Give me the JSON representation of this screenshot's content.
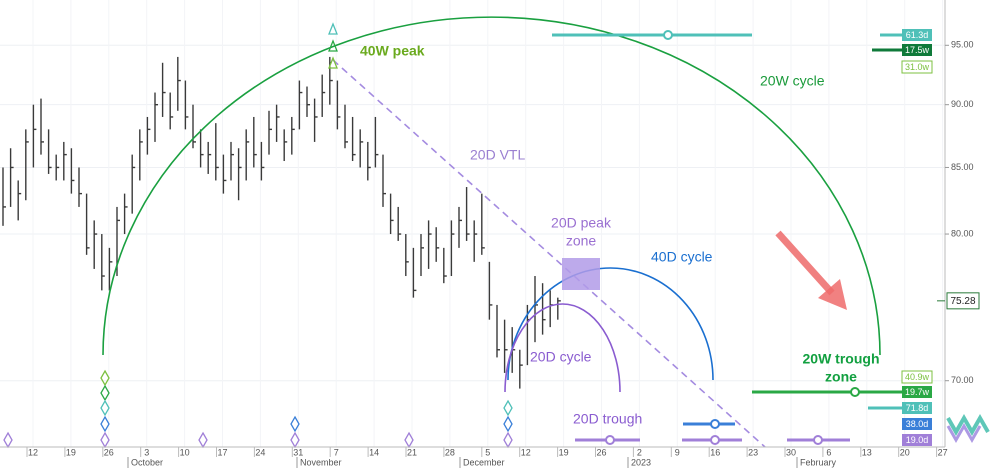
{
  "chart_data": {
    "type": "ohlc",
    "log_scale": true,
    "grid": true,
    "color": "#3a3a3a",
    "ylim": [
      65.9,
      99.0
    ],
    "yticks": [
      {
        "value": 70,
        "label": "70.00"
      },
      {
        "value": 80,
        "label": "80.00"
      },
      {
        "value": 85,
        "label": "85.00"
      },
      {
        "value": 90,
        "label": "90.00"
      },
      {
        "value": 95,
        "label": "95.00"
      }
    ],
    "x_tick_labels": [
      "12",
      "19",
      "26",
      "3",
      "10",
      "17",
      "24",
      "31",
      "7",
      "14",
      "21",
      "28",
      "5",
      "12",
      "19",
      "26",
      "2",
      "9",
      "16",
      "23",
      "30",
      "6",
      "13",
      "20",
      "27"
    ],
    "months": [
      "October",
      "November",
      "December",
      "2023",
      "February"
    ],
    "bars": {
      "high": [
        85,
        86.5,
        84,
        88,
        90,
        90.5,
        88,
        86,
        87,
        86.5,
        85,
        83,
        81,
        80,
        79,
        82,
        83,
        86,
        88,
        89,
        91,
        93.5,
        91,
        94,
        92,
        90,
        88,
        87,
        88.5,
        86,
        87,
        86.5,
        88,
        89,
        87,
        89.5,
        90,
        88,
        89,
        92,
        91.5,
        90.5,
        92.5,
        94,
        92,
        90,
        89,
        88,
        87,
        89,
        86,
        83,
        82,
        80,
        79,
        80,
        81,
        80.5,
        79,
        81,
        82,
        83.5,
        81,
        83,
        78,
        75,
        74,
        73.5,
        72,
        75,
        77,
        76.5,
        76,
        75.5
      ],
      "low": [
        80.6,
        82,
        81,
        82.5,
        85,
        86,
        84.5,
        84,
        84,
        83,
        82,
        78.5,
        77.5,
        76,
        76,
        77,
        80,
        81.5,
        84,
        86,
        87,
        89,
        88,
        89.5,
        88,
        86.5,
        85,
        84.5,
        84,
        83,
        84,
        82.5,
        84,
        85,
        84,
        86,
        87,
        85.5,
        86,
        88,
        89,
        87,
        89,
        90,
        88,
        86.5,
        85.5,
        85,
        84,
        85,
        82,
        80,
        79.5,
        77,
        75.5,
        77,
        77.5,
        78,
        76.5,
        77,
        79,
        79.5,
        78,
        78.5,
        74,
        71.5,
        70.5,
        70.5,
        69.5,
        71,
        72.5,
        73,
        73.5,
        74
      ],
      "close": [
        82,
        85,
        83,
        87,
        88,
        87,
        85,
        85,
        86,
        84,
        83,
        79,
        80,
        77,
        78,
        81,
        82,
        85,
        87,
        88,
        90,
        91,
        89,
        92,
        89,
        87,
        86,
        86,
        85,
        84,
        86,
        85,
        87,
        86,
        85,
        88,
        89,
        87,
        88,
        91,
        90,
        89,
        91,
        92,
        89,
        87,
        86,
        87,
        85,
        86,
        83,
        81,
        80,
        78,
        76,
        79,
        80,
        79,
        77,
        80,
        81,
        80,
        80,
        79,
        75,
        72,
        72,
        72,
        71,
        74,
        75,
        74,
        75,
        75.28
      ]
    },
    "last_price": 75.28,
    "annotations": [
      "40W peak",
      "20W cycle",
      "20D VTL",
      "20D peak",
      "zone",
      "40D cycle",
      "20D cycle",
      "20D trough",
      "20W trough",
      "zone"
    ],
    "cycle_labels": [
      "61.3d",
      "17.5w",
      "31.0w",
      "40.9w",
      "19.7w",
      "71.8d",
      "38.0d",
      "19.0d"
    ]
  }
}
